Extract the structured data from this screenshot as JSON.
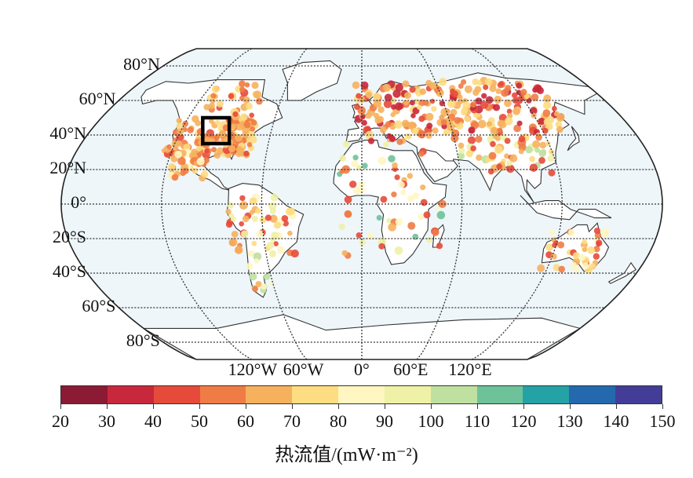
{
  "map": {
    "lat_labels": [
      {
        "text": "80°N",
        "lat": 80
      },
      {
        "text": "60°N",
        "lat": 60
      },
      {
        "text": "40°N",
        "lat": 40
      },
      {
        "text": "20°N",
        "lat": 20
      },
      {
        "text": "0°",
        "lat": 0
      },
      {
        "text": "20°S",
        "lat": -20
      },
      {
        "text": "40°S",
        "lat": -40
      },
      {
        "text": "60°S",
        "lat": -60
      },
      {
        "text": "80°S",
        "lat": -80
      }
    ],
    "lon_labels": [
      {
        "text": "120°W",
        "lon": -120
      },
      {
        "text": "60°W",
        "lon": -60
      },
      {
        "text": "0°",
        "lon": 0
      },
      {
        "text": "60°E",
        "lon": 60
      },
      {
        "text": "120°E",
        "lon": 120
      }
    ],
    "ocean_color": "#eef6fa",
    "land_color": "#ffffff",
    "highlight_box": {
      "lon_min": -110,
      "lon_max": -85,
      "lat_min": 35,
      "lat_max": 50
    }
  },
  "colorbar": {
    "ticks": [
      "20",
      "30",
      "40",
      "50",
      "60",
      "70",
      "80",
      "90",
      "100",
      "110",
      "120",
      "130",
      "140",
      "150"
    ],
    "colors": [
      "#8b1a35",
      "#c8283c",
      "#e54a3a",
      "#f07c45",
      "#f6b15e",
      "#fddc82",
      "#fff6c2",
      "#eef1a6",
      "#bfe0a0",
      "#6ec29a",
      "#25a2a6",
      "#2469ae",
      "#433d98"
    ],
    "title": "热流值/(mW·m⁻²)"
  }
}
